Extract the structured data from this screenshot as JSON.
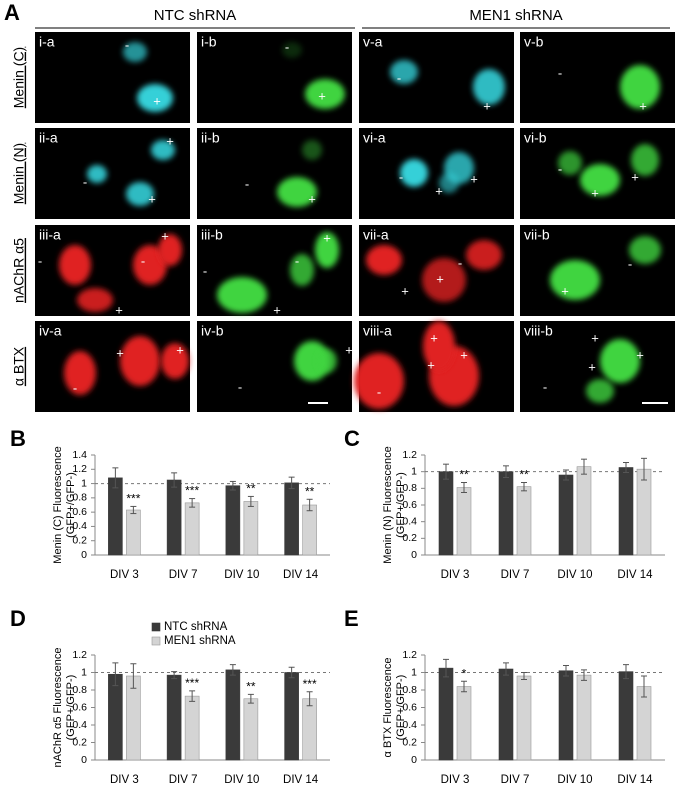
{
  "panel_a": {
    "label": "A",
    "groups": [
      "NTC shRNA",
      "MEN1 shRNA"
    ],
    "rows": [
      {
        "label": "Menin (C)",
        "tiles": [
          {
            "label": "i-a",
            "signs": [
              "-",
              "+"
            ]
          },
          {
            "label": "i-b",
            "signs": [
              "-",
              "+"
            ]
          },
          {
            "label": "v-a",
            "signs": [
              "-",
              "+"
            ]
          },
          {
            "label": "v-b",
            "signs": [
              "-",
              "+"
            ]
          }
        ]
      },
      {
        "label": "Menin (N)",
        "tiles": [
          {
            "label": "ii-a",
            "signs": [
              "+",
              "-",
              "+"
            ]
          },
          {
            "label": "ii-b",
            "signs": [
              "-",
              "+"
            ]
          },
          {
            "label": "vi-a",
            "signs": [
              "-",
              "+",
              "+"
            ]
          },
          {
            "label": "vi-b",
            "signs": [
              "-",
              "+",
              "+"
            ]
          }
        ]
      },
      {
        "label": "nAChR α5",
        "tiles": [
          {
            "label": "iii-a",
            "signs": [
              "+",
              "-",
              "-",
              "+"
            ]
          },
          {
            "label": "iii-b",
            "signs": [
              "+",
              "-",
              "-",
              "+"
            ]
          },
          {
            "label": "vii-a",
            "signs": [
              "-",
              "+",
              "+"
            ]
          },
          {
            "label": "vii-b",
            "signs": [
              "-",
              "+"
            ]
          }
        ]
      },
      {
        "label": "α BTX",
        "tiles": [
          {
            "label": "iv-a",
            "signs": [
              "+",
              "+",
              "-"
            ]
          },
          {
            "label": "iv-b",
            "signs": [
              "+",
              "-"
            ]
          },
          {
            "label": "viii-a",
            "signs": [
              "+",
              "+",
              "+",
              "-"
            ]
          },
          {
            "label": "viii-b",
            "signs": [
              "+",
              "+",
              "+",
              "-"
            ]
          }
        ]
      }
    ]
  },
  "chart_data": [
    {
      "panel": "B",
      "type": "bar",
      "ylabel": [
        "Menin (C) Fluorescence",
        "(GFP+/GFP-)"
      ],
      "categories": [
        "DIV 3",
        "DIV 7",
        "DIV 10",
        "DIV 14"
      ],
      "series": [
        {
          "color": "#3a3a3a",
          "values": [
            1.08,
            1.05,
            0.97,
            1.01
          ],
          "errors": [
            0.14,
            0.1,
            0.06,
            0.08
          ]
        },
        {
          "color": "#d4d4d4",
          "values": [
            0.63,
            0.73,
            0.75,
            0.7
          ],
          "errors": [
            0.05,
            0.06,
            0.07,
            0.08
          ],
          "annotations": [
            "***",
            "***",
            "**",
            "**"
          ]
        }
      ],
      "ylim": [
        0,
        1.4
      ],
      "yticks": [
        0,
        0.2,
        0.4,
        0.6,
        0.8,
        1,
        1.2,
        1.4
      ],
      "reference_line": 1
    },
    {
      "panel": "C",
      "type": "bar",
      "ylabel": [
        "Menin (N) Fluorescence",
        "(GFP+/GFP-)"
      ],
      "categories": [
        "DIV 3",
        "DIV 7",
        "DIV 10",
        "DIV 14"
      ],
      "series": [
        {
          "color": "#3a3a3a",
          "values": [
            1.0,
            1.0,
            0.96,
            1.05
          ],
          "errors": [
            0.09,
            0.07,
            0.06,
            0.06
          ]
        },
        {
          "color": "#d4d4d4",
          "values": [
            0.81,
            0.82,
            1.06,
            1.03
          ],
          "errors": [
            0.06,
            0.05,
            0.09,
            0.13
          ],
          "annotations": [
            "**",
            "**",
            null,
            null
          ]
        }
      ],
      "ylim": [
        0,
        1.2
      ],
      "yticks": [
        0,
        0.2,
        0.4,
        0.6,
        0.8,
        1,
        1.2
      ],
      "reference_line": 1
    },
    {
      "panel": "D",
      "type": "bar",
      "ylabel": [
        "nAChR α5 Fluorescence",
        "(GFP+/GFP-)"
      ],
      "categories": [
        "DIV 3",
        "DIV 7",
        "DIV 10",
        "DIV 14"
      ],
      "series": [
        {
          "name": "NTC shRNA",
          "color": "#3a3a3a",
          "values": [
            0.98,
            0.97,
            1.03,
            1.0
          ],
          "errors": [
            0.13,
            0.04,
            0.06,
            0.06
          ]
        },
        {
          "name": "MEN1 shRNA",
          "color": "#d4d4d4",
          "values": [
            0.96,
            0.73,
            0.7,
            0.7
          ],
          "errors": [
            0.14,
            0.06,
            0.05,
            0.08
          ],
          "annotations": [
            null,
            "***",
            "**",
            "***"
          ]
        }
      ],
      "ylim": [
        0,
        1.2
      ],
      "yticks": [
        0,
        0.2,
        0.4,
        0.6,
        0.8,
        1,
        1.2
      ],
      "reference_line": 1
    },
    {
      "panel": "E",
      "type": "bar",
      "ylabel": [
        "α BTX Fluorescence",
        "(GFP+/GFP-)"
      ],
      "categories": [
        "DIV 3",
        "DIV 7",
        "DIV 10",
        "DIV 14"
      ],
      "series": [
        {
          "color": "#3a3a3a",
          "values": [
            1.05,
            1.04,
            1.02,
            1.01
          ],
          "errors": [
            0.1,
            0.07,
            0.06,
            0.08
          ]
        },
        {
          "color": "#d4d4d4",
          "values": [
            0.84,
            0.96,
            0.97,
            0.84
          ],
          "errors": [
            0.06,
            0.04,
            0.06,
            0.12
          ],
          "annotations": [
            "*",
            null,
            null,
            null
          ]
        }
      ],
      "ylim": [
        0,
        1.2
      ],
      "yticks": [
        0,
        0.2,
        0.4,
        0.6,
        0.8,
        1,
        1.2
      ],
      "reference_line": 1
    }
  ]
}
